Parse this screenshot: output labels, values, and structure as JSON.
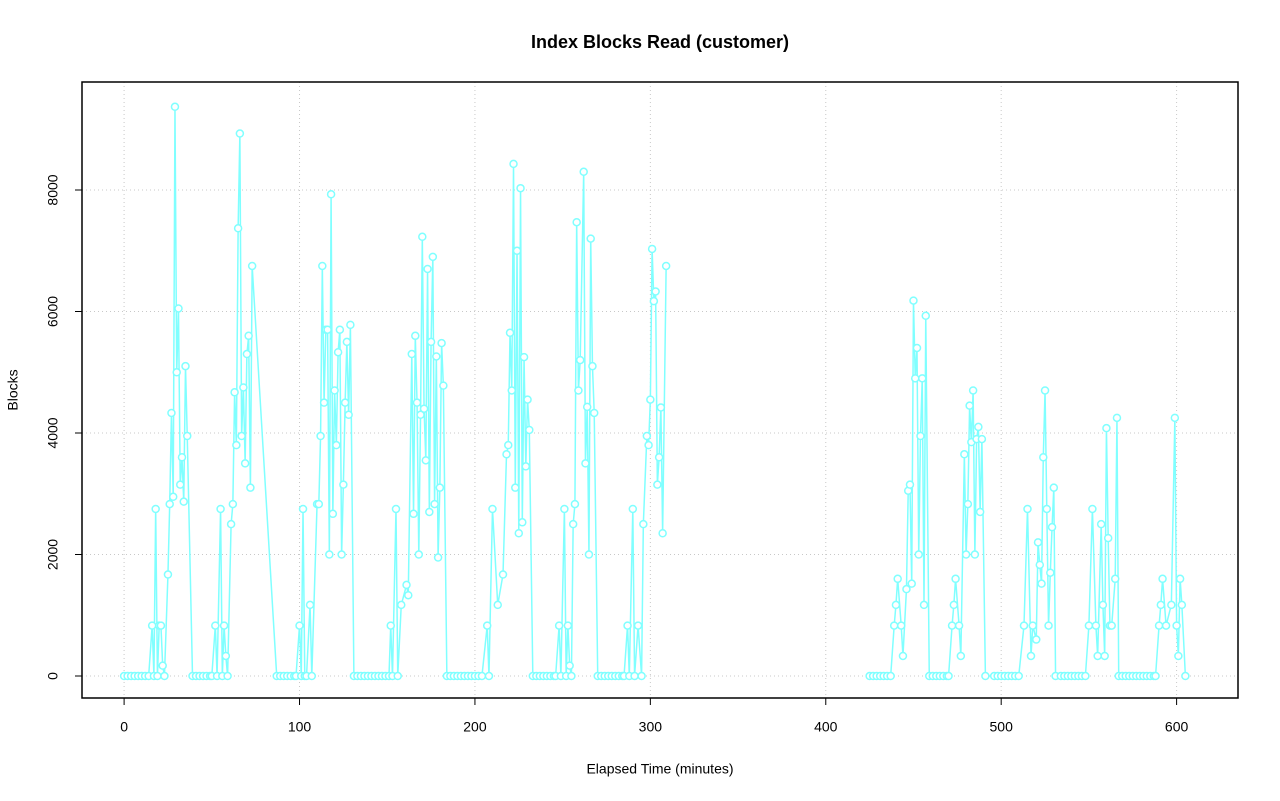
{
  "chart_data": {
    "type": "line",
    "title": "Index Blocks Read (customer)",
    "x_label": "Elapsed Time (minutes)",
    "y_label": "Blocks",
    "color": "#80ffff",
    "grid": true,
    "xlim": [
      -24,
      635
    ],
    "ylim": [
      -362,
      9778
    ],
    "xticks": [
      0,
      100,
      200,
      300,
      400,
      500,
      600
    ],
    "yticks": [
      0,
      2000,
      4000,
      6000,
      8000
    ],
    "x": [
      0,
      2,
      4,
      6,
      8,
      10,
      12,
      14,
      16,
      17,
      18,
      19,
      20,
      21,
      22,
      23,
      25,
      26,
      27,
      28,
      29,
      30,
      31,
      32,
      33,
      34,
      35,
      36,
      39,
      41,
      43,
      45,
      47,
      49,
      50,
      52,
      53,
      55,
      56,
      57,
      58,
      59,
      61,
      62,
      63,
      64,
      65,
      66,
      67,
      68,
      69,
      70,
      71,
      72,
      73,
      87,
      89,
      91,
      93,
      95,
      97,
      98,
      100,
      101,
      102,
      103,
      104,
      106,
      107,
      110,
      111,
      112,
      113,
      114,
      115,
      116,
      117,
      118,
      119,
      120,
      121,
      122,
      123,
      124,
      125,
      126,
      127,
      128,
      129,
      131,
      133,
      135,
      137,
      139,
      141,
      143,
      145,
      147,
      149,
      151,
      152,
      153,
      155,
      156,
      158,
      161,
      162,
      164,
      165,
      166,
      167,
      168,
      169,
      170,
      171,
      172,
      173,
      174,
      175,
      176,
      177,
      178,
      179,
      180,
      181,
      182,
      184,
      186,
      188,
      190,
      192,
      194,
      196,
      198,
      200,
      202,
      204,
      207,
      208,
      210,
      213,
      216,
      218,
      219,
      220,
      221,
      222,
      223,
      224,
      225,
      226,
      227,
      228,
      229,
      230,
      231,
      233,
      235,
      237,
      239,
      241,
      243,
      245,
      246,
      248,
      249,
      251,
      252,
      253,
      254,
      255,
      256,
      257,
      258,
      259,
      260,
      262,
      263,
      264,
      265,
      266,
      267,
      268,
      270,
      272,
      274,
      276,
      278,
      280,
      282,
      284,
      285,
      287,
      288,
      290,
      291,
      293,
      295,
      296,
      298,
      299,
      300,
      301,
      302,
      303,
      304,
      305,
      306,
      307,
      309,
      320,
      425,
      427,
      429,
      431,
      433,
      435,
      437,
      439,
      440,
      441,
      443,
      444,
      446,
      447,
      448,
      449,
      450,
      451,
      452,
      453,
      454,
      455,
      456,
      457,
      459,
      461,
      463,
      465,
      467,
      469,
      470,
      472,
      473,
      474,
      476,
      477,
      479,
      480,
      481,
      482,
      483,
      484,
      485,
      486,
      487,
      488,
      489,
      491,
      496,
      498,
      500,
      502,
      504,
      506,
      508,
      510,
      513,
      515,
      517,
      518,
      520,
      521,
      522,
      523,
      524,
      525,
      526,
      527,
      528,
      529,
      530,
      531,
      534,
      536,
      538,
      540,
      542,
      544,
      546,
      548,
      550,
      552,
      554,
      555,
      557,
      558,
      559,
      560,
      561,
      562,
      563,
      565,
      566,
      567,
      569,
      571,
      573,
      575,
      577,
      579,
      581,
      583,
      585,
      587,
      588,
      590,
      591,
      592,
      594,
      597,
      599,
      600,
      601,
      602,
      603,
      605
    ],
    "values": [
      0,
      0,
      0,
      0,
      0,
      0,
      0,
      0,
      830,
      0,
      2750,
      0,
      830,
      830,
      170,
      0,
      1670,
      2830,
      4330,
      2950,
      9370,
      5000,
      6050,
      3150,
      3600,
      2870,
      5100,
      3950,
      0,
      0,
      0,
      0,
      0,
      0,
      0,
      830,
      0,
      2750,
      0,
      830,
      330,
      0,
      2500,
      2830,
      4670,
      3800,
      7370,
      8930,
      3950,
      4750,
      3500,
      5300,
      5600,
      3100,
      6750,
      0,
      0,
      0,
      0,
      0,
      0,
      0,
      830,
      0,
      2750,
      0,
      0,
      1170,
      0,
      2830,
      2830,
      3950,
      6750,
      4500,
      5700,
      5700,
      2000,
      7930,
      2670,
      4700,
      3800,
      5330,
      5700,
      2000,
      3150,
      4500,
      5500,
      4300,
      5780,
      0,
      0,
      0,
      0,
      0,
      0,
      0,
      0,
      0,
      0,
      0,
      830,
      0,
      2750,
      0,
      1170,
      1500,
      1330,
      5300,
      2670,
      5600,
      4500,
      2000,
      4300,
      7230,
      4400,
      3550,
      6700,
      2700,
      5500,
      6900,
      2830,
      5260,
      1950,
      3100,
      5480,
      4780,
      0,
      0,
      0,
      0,
      0,
      0,
      0,
      0,
      0,
      0,
      0,
      830,
      0,
      2750,
      1170,
      1670,
      3650,
      3800,
      5650,
      4700,
      8430,
      3100,
      7000,
      2350,
      8030,
      2530,
      5250,
      3450,
      4550,
      4050,
      0,
      0,
      0,
      0,
      0,
      0,
      0,
      0,
      830,
      0,
      2750,
      0,
      830,
      170,
      0,
      2500,
      2830,
      7470,
      4700,
      5200,
      8300,
      3500,
      4430,
      2000,
      7200,
      5100,
      4330,
      0,
      0,
      0,
      0,
      0,
      0,
      0,
      0,
      0,
      830,
      0,
      2750,
      0,
      830,
      0,
      2500,
      3950,
      3800,
      4550,
      7030,
      6170,
      6330,
      3150,
      3600,
      4420,
      2350,
      6750,
      null,
      0,
      0,
      0,
      0,
      0,
      0,
      0,
      830,
      1170,
      1600,
      830,
      330,
      1430,
      3050,
      3150,
      1520,
      6180,
      4900,
      5400,
      2000,
      3950,
      4900,
      1170,
      5930,
      0,
      0,
      0,
      0,
      0,
      0,
      0,
      830,
      1170,
      1600,
      830,
      330,
      3650,
      2000,
      2830,
      4450,
      3850,
      4700,
      2000,
      3900,
      4100,
      2700,
      3900,
      0,
      0,
      0,
      0,
      0,
      0,
      0,
      0,
      0,
      830,
      2750,
      330,
      830,
      600,
      2200,
      1830,
      1520,
      3600,
      4700,
      2750,
      830,
      1700,
      2450,
      3100,
      0,
      0,
      0,
      0,
      0,
      0,
      0,
      0,
      0,
      830,
      2750,
      830,
      330,
      2500,
      1170,
      330,
      4080,
      2270,
      830,
      830,
      1600,
      4250,
      0,
      0,
      0,
      0,
      0,
      0,
      0,
      0,
      0,
      0,
      0,
      0,
      830,
      1170,
      1600,
      830,
      1170,
      4250,
      830,
      330,
      1600,
      1170,
      0
    ]
  }
}
